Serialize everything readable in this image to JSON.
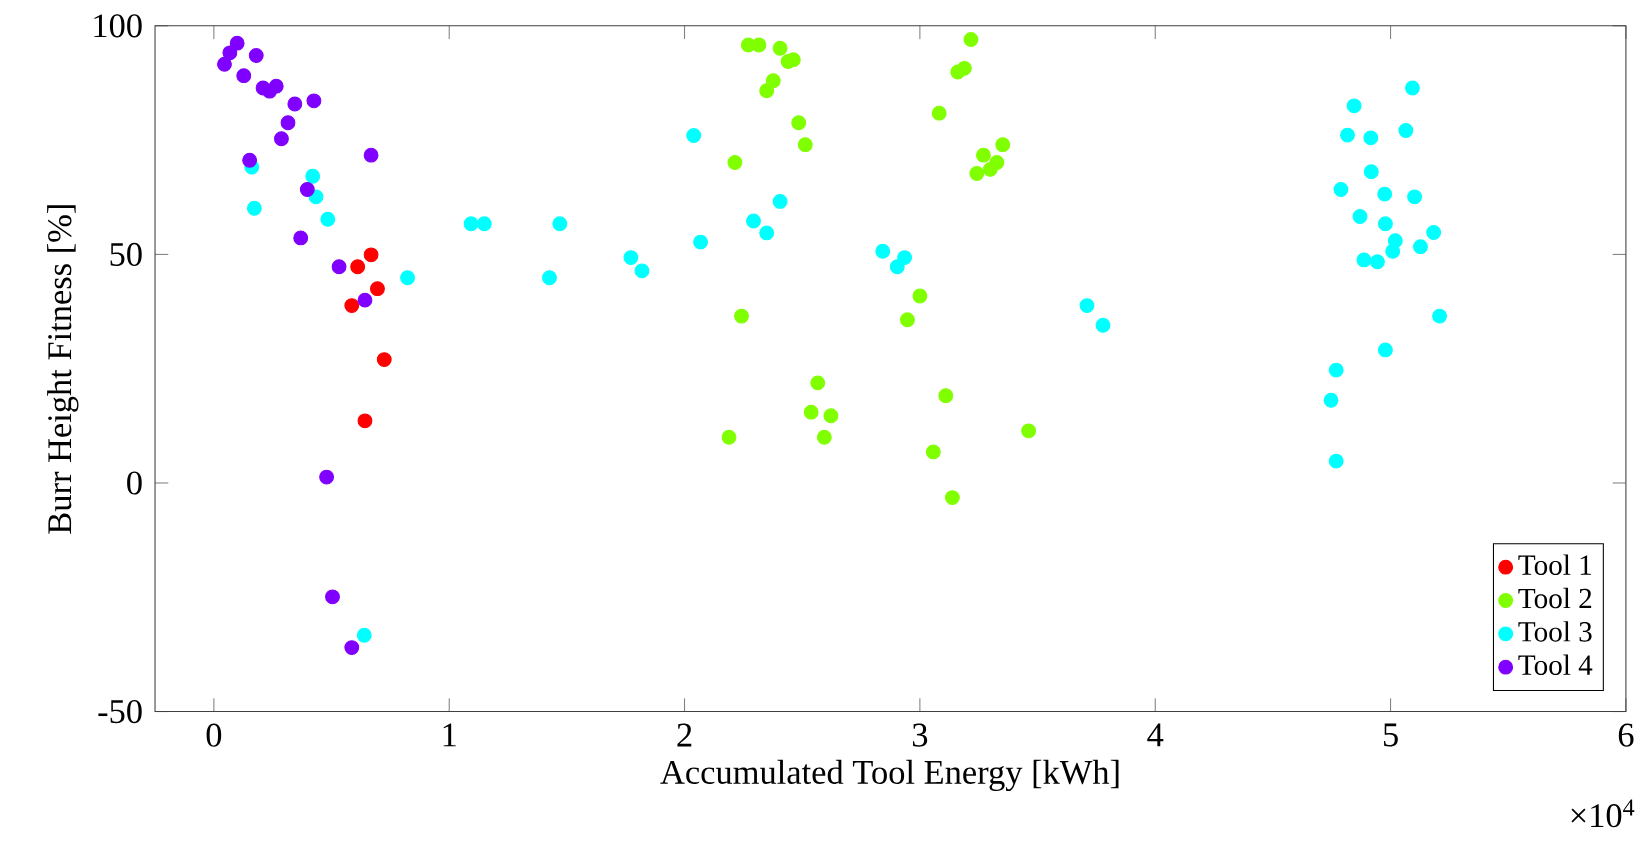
{
  "chart_data": {
    "type": "scatter",
    "xlabel": "Accumulated Tool Energy [kWh]",
    "ylabel": "Burr Height Fitness [%]",
    "xlim": [
      -0.25,
      6
    ],
    "ylim": [
      -50,
      100
    ],
    "xticks": [
      0,
      1,
      2,
      3,
      4,
      5,
      6
    ],
    "yticks": [
      -50,
      0,
      50,
      100
    ],
    "annotations": [
      "×10$^{4}$"
    ],
    "grid": false,
    "legend": "bottom right",
    "marker": "circle",
    "series": [
      {
        "name": "Tool 1",
        "color": "#ff0000",
        "x": [
          0.668,
          0.611,
          0.695,
          0.586,
          0.724,
          0.642
        ],
        "values": [
          49.9,
          47.3,
          42.5,
          38.8,
          27.0,
          13.6
        ]
      },
      {
        "name": "Tool 2",
        "color": "#80ff00",
        "x": [
          2.271,
          2.316,
          2.406,
          2.44,
          2.462,
          2.377,
          2.349,
          2.485,
          2.513,
          2.214,
          2.242,
          2.566,
          2.538,
          2.622,
          2.594,
          2.189,
          3.217,
          3.189,
          3.161,
          3.082,
          3.352,
          3.27,
          3.327,
          3.299,
          3.242,
          3.0,
          2.947,
          3.11,
          3.462,
          3.057,
          3.138
        ],
        "values": [
          95.8,
          95.8,
          95.1,
          92.2,
          92.6,
          88.0,
          85.8,
          78.8,
          74.0,
          70.1,
          36.5,
          21.9,
          15.5,
          14.7,
          10.0,
          10.0,
          97.0,
          90.7,
          89.9,
          80.9,
          74.0,
          71.7,
          70.1,
          68.6,
          67.7,
          40.9,
          35.7,
          19.1,
          11.4,
          6.8,
          -3.2
        ]
      },
      {
        "name": "Tool 3",
        "color": "#00ffff",
        "x": [
          0.161,
          0.42,
          0.434,
          0.172,
          0.484,
          1.093,
          1.149,
          1.47,
          0.823,
          1.426,
          1.772,
          1.819,
          0.639,
          2.039,
          2.068,
          2.406,
          2.293,
          2.349,
          2.842,
          2.935,
          2.904,
          3.71,
          3.778,
          5.093,
          4.845,
          4.817,
          4.916,
          5.065,
          4.918,
          4.789,
          4.975,
          5.102,
          4.87,
          4.978,
          5.183,
          5.02,
          5.009,
          5.127,
          4.887,
          4.944,
          5.208,
          4.978,
          4.769,
          4.747,
          4.769
        ],
        "values": [
          69.1,
          67.1,
          62.6,
          60.1,
          57.7,
          56.7,
          56.7,
          56.7,
          44.9,
          44.9,
          49.3,
          46.4,
          -33.3,
          76.0,
          52.7,
          61.6,
          57.3,
          54.7,
          50.7,
          49.3,
          47.3,
          38.8,
          34.5,
          86.4,
          82.5,
          76.1,
          75.5,
          77.1,
          68.1,
          64.2,
          63.2,
          62.6,
          58.3,
          56.7,
          54.8,
          53.0,
          50.7,
          51.7,
          48.8,
          48.4,
          36.5,
          29.1,
          24.7,
          18.1,
          4.8
        ]
      },
      {
        "name": "Tool 4",
        "color": "#8000ff",
        "x": [
          0.099,
          0.18,
          0.068,
          0.045,
          0.127,
          0.209,
          0.237,
          0.265,
          0.344,
          0.425,
          0.315,
          0.287,
          0.152,
          0.668,
          0.397,
          0.369,
          0.532,
          0.642,
          0.479,
          0.504,
          0.586
        ],
        "values": [
          96.2,
          93.5,
          94.1,
          91.6,
          89.1,
          86.4,
          85.7,
          86.8,
          82.9,
          83.6,
          78.8,
          75.3,
          70.6,
          71.7,
          64.2,
          53.6,
          47.3,
          40.0,
          1.3,
          -24.9,
          -36.0
        ]
      }
    ]
  }
}
